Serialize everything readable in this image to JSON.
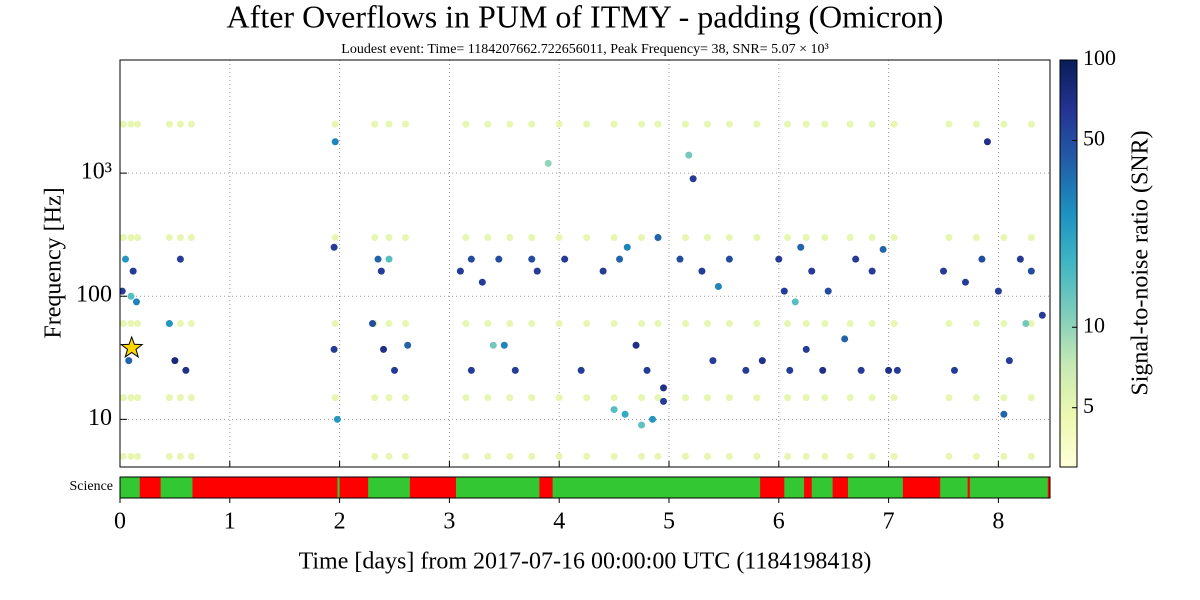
{
  "chart_data": {
    "type": "scatter",
    "title": "After Overflows in PUM of ITMY - padding (Omicron)",
    "subtitle": "Loudest event: Time= 1184207662.722656011, Peak Frequency= 38, SNR= 5.07 × 10³",
    "xlabel": "Time [days] from 2017-07-16 00:00:00 UTC (1184198418)",
    "ylabel": "Frequency [Hz]",
    "colorbar_label": "Signal-to-noise ratio (SNR)",
    "xlim": [
      0,
      8.47
    ],
    "xticks": [
      0,
      1,
      2,
      3,
      4,
      5,
      6,
      7,
      8
    ],
    "ylim": [
      4.1,
      8300
    ],
    "yscale": "log",
    "yticks": [
      10,
      100,
      {
        "value": 1000,
        "label": "10³"
      }
    ],
    "clim": [
      3,
      100
    ],
    "cscale": "log",
    "cticks": [
      5,
      10,
      50,
      100
    ],
    "colormap": "YlGnBu",
    "grid": true,
    "loudest": {
      "x": 0.107,
      "y": 38
    },
    "loudest_color": "#ffd700",
    "points": [
      [
        0.03,
        5,
        5
      ],
      [
        0.03,
        15,
        5
      ],
      [
        0.03,
        60,
        5
      ],
      [
        0.03,
        300,
        5
      ],
      [
        0.03,
        2500,
        5
      ],
      [
        0.1,
        5,
        5
      ],
      [
        0.1,
        15,
        5
      ],
      [
        0.1,
        60,
        5
      ],
      [
        0.1,
        300,
        5
      ],
      [
        0.1,
        2500,
        5
      ],
      [
        0.16,
        5,
        5
      ],
      [
        0.16,
        15,
        5
      ],
      [
        0.16,
        60,
        5
      ],
      [
        0.16,
        300,
        5
      ],
      [
        0.16,
        2500,
        5
      ],
      [
        0.45,
        5,
        5
      ],
      [
        0.45,
        15,
        5
      ],
      [
        0.45,
        60,
        5
      ],
      [
        0.45,
        300,
        5
      ],
      [
        0.45,
        2500,
        5
      ],
      [
        0.55,
        5,
        5
      ],
      [
        0.55,
        15,
        5
      ],
      [
        0.55,
        60,
        5
      ],
      [
        0.55,
        300,
        5
      ],
      [
        0.55,
        2500,
        5
      ],
      [
        0.65,
        5,
        5
      ],
      [
        0.65,
        15,
        5
      ],
      [
        0.65,
        60,
        5
      ],
      [
        0.65,
        300,
        5
      ],
      [
        0.65,
        2500,
        5
      ],
      [
        1.96,
        15,
        5
      ],
      [
        1.96,
        60,
        5
      ],
      [
        1.96,
        300,
        5
      ],
      [
        1.96,
        2500,
        5
      ],
      [
        2.32,
        5,
        5
      ],
      [
        2.32,
        15,
        5
      ],
      [
        2.32,
        60,
        5
      ],
      [
        2.32,
        300,
        5
      ],
      [
        2.32,
        2500,
        5
      ],
      [
        2.45,
        5,
        5
      ],
      [
        2.45,
        15,
        5
      ],
      [
        2.45,
        60,
        5
      ],
      [
        2.45,
        300,
        5
      ],
      [
        2.45,
        2500,
        5
      ],
      [
        2.6,
        5,
        5
      ],
      [
        2.6,
        15,
        5
      ],
      [
        2.6,
        60,
        5
      ],
      [
        2.6,
        300,
        5
      ],
      [
        2.6,
        2500,
        5
      ],
      [
        3.15,
        5,
        5
      ],
      [
        3.15,
        15,
        5
      ],
      [
        3.15,
        60,
        5
      ],
      [
        3.15,
        300,
        5
      ],
      [
        3.15,
        2500,
        5
      ],
      [
        3.35,
        5,
        5
      ],
      [
        3.35,
        15,
        5
      ],
      [
        3.35,
        60,
        5
      ],
      [
        3.35,
        300,
        5
      ],
      [
        3.35,
        2500,
        5
      ],
      [
        3.55,
        5,
        5
      ],
      [
        3.55,
        15,
        5
      ],
      [
        3.55,
        60,
        5
      ],
      [
        3.55,
        300,
        5
      ],
      [
        3.55,
        2500,
        5
      ],
      [
        3.75,
        5,
        5
      ],
      [
        3.75,
        15,
        5
      ],
      [
        3.75,
        60,
        5
      ],
      [
        3.75,
        300,
        5
      ],
      [
        3.75,
        2500,
        5
      ],
      [
        4.0,
        5,
        5
      ],
      [
        4.0,
        15,
        5
      ],
      [
        4.0,
        60,
        5
      ],
      [
        4.0,
        300,
        5
      ],
      [
        4.0,
        2500,
        5
      ],
      [
        4.25,
        5,
        5
      ],
      [
        4.25,
        15,
        5
      ],
      [
        4.25,
        60,
        5
      ],
      [
        4.25,
        300,
        5
      ],
      [
        4.25,
        2500,
        5
      ],
      [
        4.5,
        5,
        5
      ],
      [
        4.5,
        15,
        5
      ],
      [
        4.5,
        60,
        5
      ],
      [
        4.5,
        300,
        5
      ],
      [
        4.5,
        2500,
        5
      ],
      [
        4.75,
        5,
        5
      ],
      [
        4.75,
        15,
        5
      ],
      [
        4.75,
        60,
        5
      ],
      [
        4.75,
        300,
        5
      ],
      [
        4.75,
        2500,
        5
      ],
      [
        4.9,
        5,
        5
      ],
      [
        4.9,
        15,
        5
      ],
      [
        4.9,
        60,
        5
      ],
      [
        4.9,
        300,
        5
      ],
      [
        4.9,
        2500,
        5
      ],
      [
        5.15,
        5,
        5
      ],
      [
        5.15,
        15,
        5
      ],
      [
        5.15,
        60,
        5
      ],
      [
        5.15,
        300,
        5
      ],
      [
        5.15,
        2500,
        5
      ],
      [
        5.35,
        5,
        5
      ],
      [
        5.35,
        15,
        5
      ],
      [
        5.35,
        60,
        5
      ],
      [
        5.35,
        300,
        5
      ],
      [
        5.35,
        2500,
        5
      ],
      [
        5.55,
        5,
        5
      ],
      [
        5.55,
        15,
        5
      ],
      [
        5.55,
        60,
        5
      ],
      [
        5.55,
        300,
        5
      ],
      [
        5.55,
        2500,
        5
      ],
      [
        5.8,
        5,
        5
      ],
      [
        5.8,
        15,
        5
      ],
      [
        5.8,
        60,
        5
      ],
      [
        5.8,
        300,
        5
      ],
      [
        5.8,
        2500,
        5
      ],
      [
        6.08,
        5,
        5
      ],
      [
        6.08,
        15,
        5
      ],
      [
        6.08,
        60,
        5
      ],
      [
        6.08,
        300,
        5
      ],
      [
        6.08,
        2500,
        5
      ],
      [
        6.25,
        5,
        5
      ],
      [
        6.25,
        15,
        5
      ],
      [
        6.25,
        60,
        5
      ],
      [
        6.25,
        300,
        5
      ],
      [
        6.25,
        2500,
        5
      ],
      [
        6.42,
        5,
        5
      ],
      [
        6.42,
        15,
        5
      ],
      [
        6.42,
        60,
        5
      ],
      [
        6.42,
        300,
        5
      ],
      [
        6.42,
        2500,
        5
      ],
      [
        6.65,
        5,
        5
      ],
      [
        6.65,
        15,
        5
      ],
      [
        6.65,
        60,
        5
      ],
      [
        6.65,
        300,
        5
      ],
      [
        6.65,
        2500,
        5
      ],
      [
        6.85,
        5,
        5
      ],
      [
        6.85,
        15,
        5
      ],
      [
        6.85,
        60,
        5
      ],
      [
        6.85,
        300,
        5
      ],
      [
        6.85,
        2500,
        5
      ],
      [
        7.05,
        5,
        5
      ],
      [
        7.05,
        15,
        5
      ],
      [
        7.05,
        60,
        5
      ],
      [
        7.05,
        300,
        5
      ],
      [
        7.05,
        2500,
        5
      ],
      [
        7.55,
        5,
        5
      ],
      [
        7.55,
        15,
        5
      ],
      [
        7.55,
        60,
        5
      ],
      [
        7.55,
        300,
        5
      ],
      [
        7.55,
        2500,
        5
      ],
      [
        7.8,
        5,
        5
      ],
      [
        7.8,
        15,
        5
      ],
      [
        7.8,
        60,
        5
      ],
      [
        7.8,
        300,
        5
      ],
      [
        7.8,
        2500,
        5
      ],
      [
        8.05,
        5,
        5
      ],
      [
        8.05,
        15,
        5
      ],
      [
        8.05,
        60,
        5
      ],
      [
        8.05,
        300,
        5
      ],
      [
        8.05,
        2500,
        5
      ],
      [
        8.3,
        5,
        5
      ],
      [
        8.3,
        15,
        5
      ],
      [
        8.3,
        60,
        5
      ],
      [
        8.3,
        300,
        5
      ],
      [
        8.3,
        2500,
        5
      ],
      [
        0.1,
        100,
        15
      ],
      [
        3.4,
        40,
        12
      ],
      [
        4.5,
        12,
        15
      ],
      [
        4.75,
        9,
        14
      ],
      [
        5.18,
        1400,
        12
      ],
      [
        3.9,
        1200,
        10
      ],
      [
        2.45,
        200,
        15
      ],
      [
        8.25,
        60,
        12
      ],
      [
        6.15,
        90,
        15
      ],
      [
        0.02,
        110,
        60
      ],
      [
        0.08,
        30,
        40
      ],
      [
        0.12,
        160,
        60
      ],
      [
        0.15,
        90,
        30
      ],
      [
        0.05,
        200,
        25
      ],
      [
        0.5,
        30,
        80
      ],
      [
        0.55,
        200,
        60
      ],
      [
        0.6,
        25,
        70
      ],
      [
        0.45,
        60,
        25
      ],
      [
        1.95,
        250,
        60
      ],
      [
        1.95,
        37,
        60
      ],
      [
        1.96,
        1800,
        30
      ],
      [
        1.98,
        10,
        25
      ],
      [
        2.35,
        200,
        40
      ],
      [
        2.38,
        160,
        60
      ],
      [
        2.3,
        60,
        50
      ],
      [
        2.5,
        25,
        60
      ],
      [
        2.62,
        40,
        40
      ],
      [
        2.4,
        37,
        70
      ],
      [
        3.1,
        160,
        60
      ],
      [
        3.2,
        200,
        50
      ],
      [
        3.3,
        130,
        60
      ],
      [
        3.2,
        25,
        60
      ],
      [
        3.45,
        200,
        50
      ],
      [
        3.6,
        25,
        60
      ],
      [
        3.75,
        200,
        50
      ],
      [
        3.8,
        160,
        60
      ],
      [
        3.5,
        40,
        30
      ],
      [
        4.05,
        200,
        60
      ],
      [
        4.2,
        25,
        60
      ],
      [
        4.4,
        160,
        60
      ],
      [
        4.55,
        200,
        40
      ],
      [
        4.62,
        250,
        30
      ],
      [
        4.7,
        40,
        70
      ],
      [
        4.8,
        25,
        60
      ],
      [
        4.95,
        18,
        70
      ],
      [
        4.95,
        14,
        60
      ],
      [
        4.9,
        300,
        40
      ],
      [
        4.6,
        11,
        20
      ],
      [
        4.85,
        10,
        25
      ],
      [
        5.1,
        200,
        50
      ],
      [
        5.22,
        900,
        60
      ],
      [
        5.3,
        160,
        60
      ],
      [
        5.4,
        30,
        60
      ],
      [
        5.55,
        200,
        50
      ],
      [
        5.7,
        25,
        60
      ],
      [
        5.85,
        30,
        70
      ],
      [
        5.45,
        120,
        30
      ],
      [
        6.0,
        200,
        60
      ],
      [
        6.05,
        110,
        60
      ],
      [
        6.1,
        25,
        60
      ],
      [
        6.2,
        250,
        40
      ],
      [
        6.25,
        37,
        60
      ],
      [
        6.3,
        160,
        60
      ],
      [
        6.4,
        25,
        70
      ],
      [
        6.45,
        110,
        50
      ],
      [
        6.7,
        200,
        60
      ],
      [
        6.75,
        25,
        60
      ],
      [
        6.85,
        160,
        60
      ],
      [
        6.95,
        240,
        40
      ],
      [
        7.0,
        25,
        70
      ],
      [
        7.08,
        25,
        60
      ],
      [
        6.6,
        45,
        40
      ],
      [
        7.5,
        160,
        60
      ],
      [
        7.6,
        25,
        60
      ],
      [
        7.7,
        130,
        60
      ],
      [
        7.85,
        200,
        50
      ],
      [
        8.0,
        110,
        60
      ],
      [
        8.1,
        30,
        60
      ],
      [
        8.2,
        200,
        60
      ],
      [
        8.3,
        160,
        50
      ],
      [
        8.4,
        70,
        60
      ],
      [
        7.9,
        1800,
        70
      ],
      [
        8.05,
        11,
        40
      ]
    ],
    "state": {
      "label": "Science",
      "active_color": "#33c733",
      "inactive_color": "#ff0000",
      "segments": [
        [
          0,
          0.18
        ],
        [
          0.37,
          0.66
        ],
        [
          1.98,
          2.0
        ],
        [
          2.26,
          2.64
        ],
        [
          3.06,
          3.82
        ],
        [
          3.94,
          5.83
        ],
        [
          6.05,
          6.23
        ],
        [
          6.3,
          6.49
        ],
        [
          6.63,
          7.13
        ],
        [
          7.47,
          7.72
        ],
        [
          7.74,
          8.45
        ]
      ]
    }
  }
}
